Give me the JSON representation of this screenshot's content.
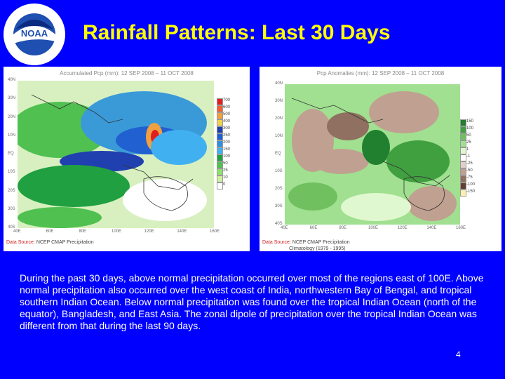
{
  "slide": {
    "title": "Rainfall Patterns: Last 30 Days",
    "page_number": "4",
    "description": "During the past 30 days, above normal precipitation occurred over most of the regions east of 100E. Above normal precipitation also occurred over the west coast of India, northwestern Bay of Bengal, and tropical southern Indian Ocean. Below normal precipitation was found over the tropical Indian Ocean (north of the equator), Bangladesh, and East Asia. The zonal dipole of precipitation over the tropical Indian Ocean was different from that during the last 90 days."
  },
  "logo": {
    "text": "NOAA",
    "ring_text": "NATIONAL OCEANIC AND ATMOSPHERIC ADMINISTRATION • U.S. DEPARTMENT OF COMMERCE"
  },
  "left_map": {
    "title": "Accumulated Pcp (mm): 12 SEP 2008 – 11 OCT 2008",
    "source_label": "Data Source:",
    "source_text": "NCEP CMAP Precipitation",
    "lat_labels": [
      "40N",
      "30N",
      "20N",
      "10N",
      "EQ",
      "10S",
      "20S",
      "30S",
      "40S"
    ],
    "lon_labels": [
      "40E",
      "60E",
      "80E",
      "100E",
      "120E",
      "140E",
      "160E"
    ],
    "colorbar": [
      {
        "label": "700",
        "color": "#e02020"
      },
      {
        "label": "600",
        "color": "#f06030"
      },
      {
        "label": "500",
        "color": "#f0a040"
      },
      {
        "label": "400",
        "color": "#f0d050"
      },
      {
        "label": "300",
        "color": "#2040b0"
      },
      {
        "label": "250",
        "color": "#2060d0"
      },
      {
        "label": "200",
        "color": "#3090e0"
      },
      {
        "label": "150",
        "color": "#40b0f0"
      },
      {
        "label": "100",
        "color": "#20a040"
      },
      {
        "label": "50",
        "color": "#50c050"
      },
      {
        "label": "25",
        "color": "#90e070"
      },
      {
        "label": "10",
        "color": "#d0f0a0"
      },
      {
        "label": "0",
        "color": "#ffffff"
      }
    ]
  },
  "right_map": {
    "title": "Pcp Anomalies (mm): 12 SEP 2008 – 11 OCT 2008",
    "source_label": "Data Source:",
    "source_text": "NCEP CMAP Precipitation",
    "source_text_2": "Climatology (1979 - 1995)",
    "lat_labels": [
      "40N",
      "30N",
      "20N",
      "10N",
      "EQ",
      "10S",
      "20S",
      "30S",
      "40S"
    ],
    "lon_labels": [
      "40E",
      "60E",
      "80E",
      "100E",
      "120E",
      "140E",
      "160E"
    ],
    "colorbar": [
      {
        "label": "150",
        "color": "#208030"
      },
      {
        "label": "100",
        "color": "#40a040"
      },
      {
        "label": "50",
        "color": "#70c060"
      },
      {
        "label": "25",
        "color": "#a0e090"
      },
      {
        "label": "1",
        "color": "#e0f8d0"
      },
      {
        "label": "-1",
        "color": "#ffffff"
      },
      {
        "label": "-25",
        "color": "#e0d0c8"
      },
      {
        "label": "-50",
        "color": "#c0a090"
      },
      {
        "label": "-75",
        "color": "#907060"
      },
      {
        "label": "-100",
        "color": "#604030"
      },
      {
        "label": "-150",
        "color": "#fff0b0"
      }
    ]
  }
}
